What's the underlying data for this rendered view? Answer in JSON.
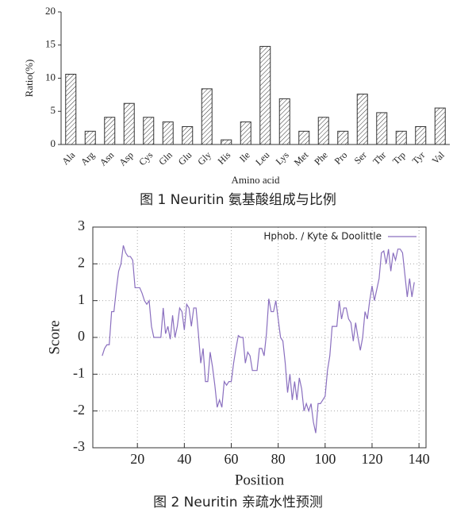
{
  "chart_data": [
    {
      "type": "bar",
      "caption": "图 1   Neuritin 氨基酸组成与比例",
      "xlabel": "Amino acid",
      "ylabel": "Ratio(%)",
      "categories": [
        "Ala",
        "Arg",
        "Asn",
        "Asp",
        "Cys",
        "Gln",
        "Glu",
        "Gly",
        "His",
        "Ile",
        "Leu",
        "Lys",
        "Met",
        "Phe",
        "Pro",
        "Ser",
        "Thr",
        "Trp",
        "Tyr",
        "Val"
      ],
      "values": [
        10.6,
        2.0,
        4.1,
        6.2,
        4.1,
        3.4,
        2.7,
        8.4,
        0.7,
        3.4,
        14.8,
        6.9,
        2.0,
        4.1,
        2.0,
        7.6,
        4.8,
        2.0,
        2.7,
        5.5
      ],
      "color": "#333333",
      "ylim": [
        0,
        20
      ],
      "yticks": [
        0,
        5,
        10,
        15,
        20
      ],
      "grid": false
    },
    {
      "type": "line",
      "caption": "图 2   Neuritin 亲疏水性预测",
      "xlabel": "Position",
      "ylabel": "Score",
      "legend": "upper right",
      "x": [
        5,
        6,
        7,
        8,
        9,
        10,
        11,
        12,
        13,
        14,
        15,
        16,
        17,
        18,
        19,
        20,
        21,
        22,
        23,
        24,
        25,
        26,
        27,
        28,
        29,
        30,
        31,
        32,
        33,
        34,
        35,
        36,
        37,
        38,
        39,
        40,
        41,
        42,
        43,
        44,
        45,
        46,
        47,
        48,
        49,
        50,
        51,
        52,
        53,
        54,
        55,
        56,
        57,
        58,
        59,
        60,
        61,
        62,
        63,
        64,
        65,
        66,
        67,
        68,
        69,
        70,
        71,
        72,
        73,
        74,
        75,
        76,
        77,
        78,
        79,
        80,
        81,
        82,
        83,
        84,
        85,
        86,
        87,
        88,
        89,
        90,
        91,
        92,
        93,
        94,
        95,
        96,
        97,
        98,
        99,
        100,
        101,
        102,
        103,
        104,
        105,
        106,
        107,
        108,
        109,
        110,
        111,
        112,
        113,
        114,
        115,
        116,
        117,
        118,
        119,
        120,
        121,
        122,
        123,
        124,
        125,
        126,
        127,
        128,
        129,
        130,
        131,
        132,
        133,
        134,
        135,
        136,
        137,
        138
      ],
      "series": [
        {
          "name": "Hphob. / Kyte & Doolittle",
          "color": "#8a6fbf",
          "values": [
            -0.5,
            -0.3,
            -0.2,
            -0.2,
            0.7,
            0.7,
            1.3,
            1.8,
            2.0,
            2.5,
            2.3,
            2.2,
            2.2,
            2.1,
            1.35,
            1.35,
            1.35,
            1.2,
            1.0,
            0.9,
            1.0,
            0.3,
            0.0,
            0.0,
            0.0,
            0.0,
            0.8,
            0.1,
            0.3,
            -0.05,
            0.6,
            0.0,
            0.3,
            0.8,
            0.7,
            0.2,
            0.9,
            0.8,
            0.3,
            0.8,
            0.8,
            0.1,
            -0.7,
            -0.3,
            -1.2,
            -1.2,
            -0.4,
            -0.8,
            -1.3,
            -1.9,
            -1.7,
            -1.9,
            -1.2,
            -1.3,
            -1.2,
            -1.2,
            -0.7,
            -0.3,
            0.05,
            0.0,
            0.0,
            -0.7,
            -0.4,
            -0.5,
            -0.9,
            -0.9,
            -0.9,
            -0.3,
            -0.3,
            -0.5,
            0.1,
            1.05,
            0.7,
            0.7,
            1.0,
            0.5,
            0.0,
            -0.1,
            -0.7,
            -1.5,
            -1.0,
            -1.7,
            -1.2,
            -1.7,
            -1.1,
            -1.4,
            -2.0,
            -1.8,
            -2.0,
            -1.8,
            -2.3,
            -2.6,
            -1.8,
            -1.8,
            -1.7,
            -1.6,
            -0.9,
            -0.5,
            0.3,
            0.3,
            0.3,
            1.0,
            0.5,
            0.8,
            0.8,
            0.5,
            0.4,
            -0.1,
            0.4,
            0.0,
            -0.35,
            0.0,
            0.7,
            0.5,
            1.0,
            1.4,
            1.0,
            1.3,
            1.6,
            2.3,
            2.35,
            2.0,
            2.4,
            1.8,
            2.3,
            2.1,
            2.4,
            2.4,
            2.3,
            1.7,
            1.1,
            1.6,
            1.1,
            1.5
          ]
        }
      ],
      "xlim": [
        1,
        143
      ],
      "xticks": [
        20,
        40,
        60,
        80,
        100,
        120,
        140
      ],
      "ylim": [
        -3,
        3
      ],
      "yticks": [
        -3,
        -2,
        -1,
        0,
        1,
        2,
        3
      ],
      "grid": true
    }
  ]
}
